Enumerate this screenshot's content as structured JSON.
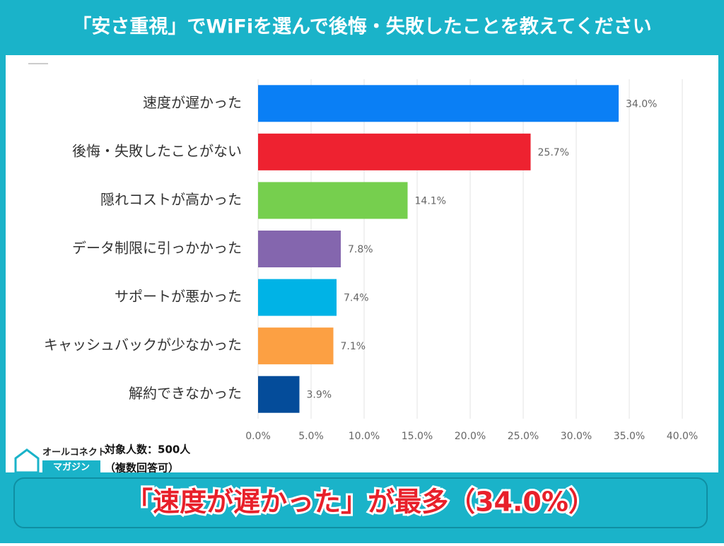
{
  "chart_data": {
    "type": "barh",
    "title": "「安さ重視」でWiFiを選んで後悔・失敗したことを教えてください",
    "categories": [
      "速度が遅かった",
      "後悔・失敗したことがない",
      "隠れコストが高かった",
      "データ制限に引っかかった",
      "サポートが悪かった",
      "キャッシュバックが少なかった",
      "解約できなかった"
    ],
    "values": [
      34.0,
      25.7,
      14.1,
      7.8,
      7.4,
      7.1,
      3.9
    ],
    "value_labels": [
      "34.0%",
      "25.7%",
      "14.1%",
      "7.8%",
      "7.4%",
      "7.1%",
      "3.9%"
    ],
    "colors": [
      "#0a7ff5",
      "#ee2230",
      "#76cf4e",
      "#8466ae",
      "#00b3e6",
      "#fca043",
      "#044c9a"
    ],
    "xlim": [
      0,
      40
    ],
    "xticks": [
      {
        "value": 0,
        "label": "0.0%"
      },
      {
        "value": 5,
        "label": "5.0%"
      },
      {
        "value": 10,
        "label": "10.0%"
      },
      {
        "value": 15,
        "label": "15.0%"
      },
      {
        "value": 20,
        "label": "20.0%"
      },
      {
        "value": 25,
        "label": "25.0%"
      },
      {
        "value": 30,
        "label": "30.0%"
      },
      {
        "value": 35,
        "label": "35.0%"
      },
      {
        "value": 40,
        "label": "40.0%"
      }
    ],
    "grid": true
  },
  "logo": {
    "line1": "オールコネクト",
    "line2": "マガジン"
  },
  "note": {
    "respondents": "対象人数：500人",
    "multiple": "（複数回答可）"
  },
  "banner": "「速度が遅かった」が最多（34.0%）"
}
